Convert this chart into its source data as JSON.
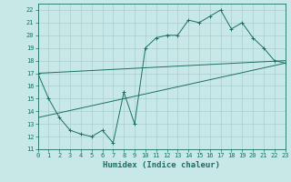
{
  "xlabel": "Humidex (Indice chaleur)",
  "bg_color": "#c8e8e8",
  "line_color": "#1a7060",
  "xlim": [
    0,
    23
  ],
  "ylim": [
    11,
    22.5
  ],
  "yticks": [
    11,
    12,
    13,
    14,
    15,
    16,
    17,
    18,
    19,
    20,
    21,
    22
  ],
  "xticks": [
    0,
    1,
    2,
    3,
    4,
    5,
    6,
    7,
    8,
    9,
    10,
    11,
    12,
    13,
    14,
    15,
    16,
    17,
    18,
    19,
    20,
    21,
    22,
    23
  ],
  "zigzag_x": [
    0,
    1,
    2,
    3,
    4,
    5,
    6,
    7,
    8,
    9,
    10,
    11,
    12,
    13,
    14,
    15,
    16,
    17,
    18,
    19,
    20,
    21,
    22,
    23
  ],
  "zigzag_y": [
    17.0,
    15.0,
    13.5,
    12.5,
    12.2,
    12.0,
    12.5,
    11.5,
    15.5,
    13.0,
    19.0,
    19.8,
    20.0,
    20.0,
    21.2,
    21.0,
    21.5,
    22.0,
    20.5,
    21.0,
    19.8,
    19.0,
    18.0,
    17.8
  ],
  "upper_line_x": [
    0,
    23
  ],
  "upper_line_y": [
    17.0,
    18.0
  ],
  "lower_line_x": [
    0,
    23
  ],
  "lower_line_y": [
    13.5,
    17.8
  ],
  "grid_color": "#a0c8c8",
  "font_size_ticks": 5,
  "font_size_xlabel": 6.5,
  "marker_size": 2.5,
  "linewidth": 0.7
}
